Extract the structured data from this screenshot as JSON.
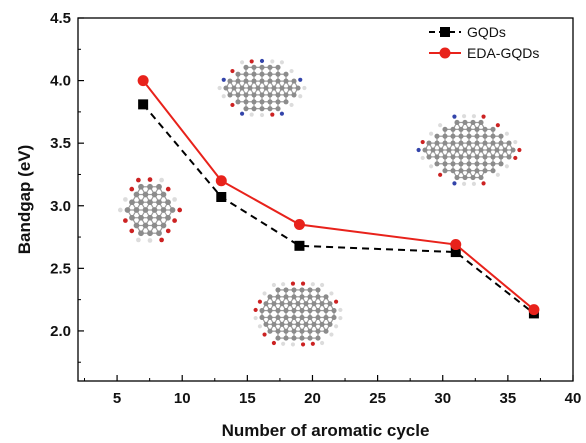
{
  "chart_data": {
    "type": "line",
    "title": "",
    "xlabel": "Number of aromatic cycle",
    "ylabel": "Bandgap (eV)",
    "xlim": [
      2,
      40
    ],
    "ylim": [
      1.6,
      4.5
    ],
    "xticks": [
      5,
      10,
      15,
      20,
      25,
      30,
      35,
      40
    ],
    "yticks": [
      2.0,
      2.5,
      3.0,
      3.5,
      4.0,
      4.5
    ],
    "xtick_labels": [
      "5",
      "10",
      "15",
      "20",
      "25",
      "30",
      "35",
      "40"
    ],
    "ytick_labels": [
      "2.0",
      "2.5",
      "3.0",
      "3.5",
      "4.0",
      "4.5"
    ],
    "grid": false,
    "legend_position": "top-right",
    "series": [
      {
        "name": "GQDs",
        "x": [
          7,
          13,
          19,
          31,
          37
        ],
        "y": [
          3.81,
          3.07,
          2.68,
          2.63,
          2.14
        ],
        "color": "#000000",
        "line_style": "dashed",
        "marker": "square"
      },
      {
        "name": "EDA-GQDs",
        "x": [
          7,
          13,
          19,
          31,
          37
        ],
        "y": [
          4.0,
          3.2,
          2.85,
          2.69,
          2.17
        ],
        "color": "#e8221b",
        "line_style": "solid",
        "marker": "circle"
      }
    ],
    "annotations": [
      {
        "type": "molecule-image",
        "near_x": 7,
        "description_icon": "graphene-quantum-dot-small"
      },
      {
        "type": "molecule-image",
        "near_x": 13,
        "description_icon": "eda-graphene-quantum-dot"
      },
      {
        "type": "molecule-image",
        "near_x": 22,
        "description_icon": "graphene-quantum-dot-large"
      },
      {
        "type": "molecule-image",
        "near_x": 33,
        "description_icon": "eda-graphene-quantum-dot-large"
      }
    ]
  }
}
